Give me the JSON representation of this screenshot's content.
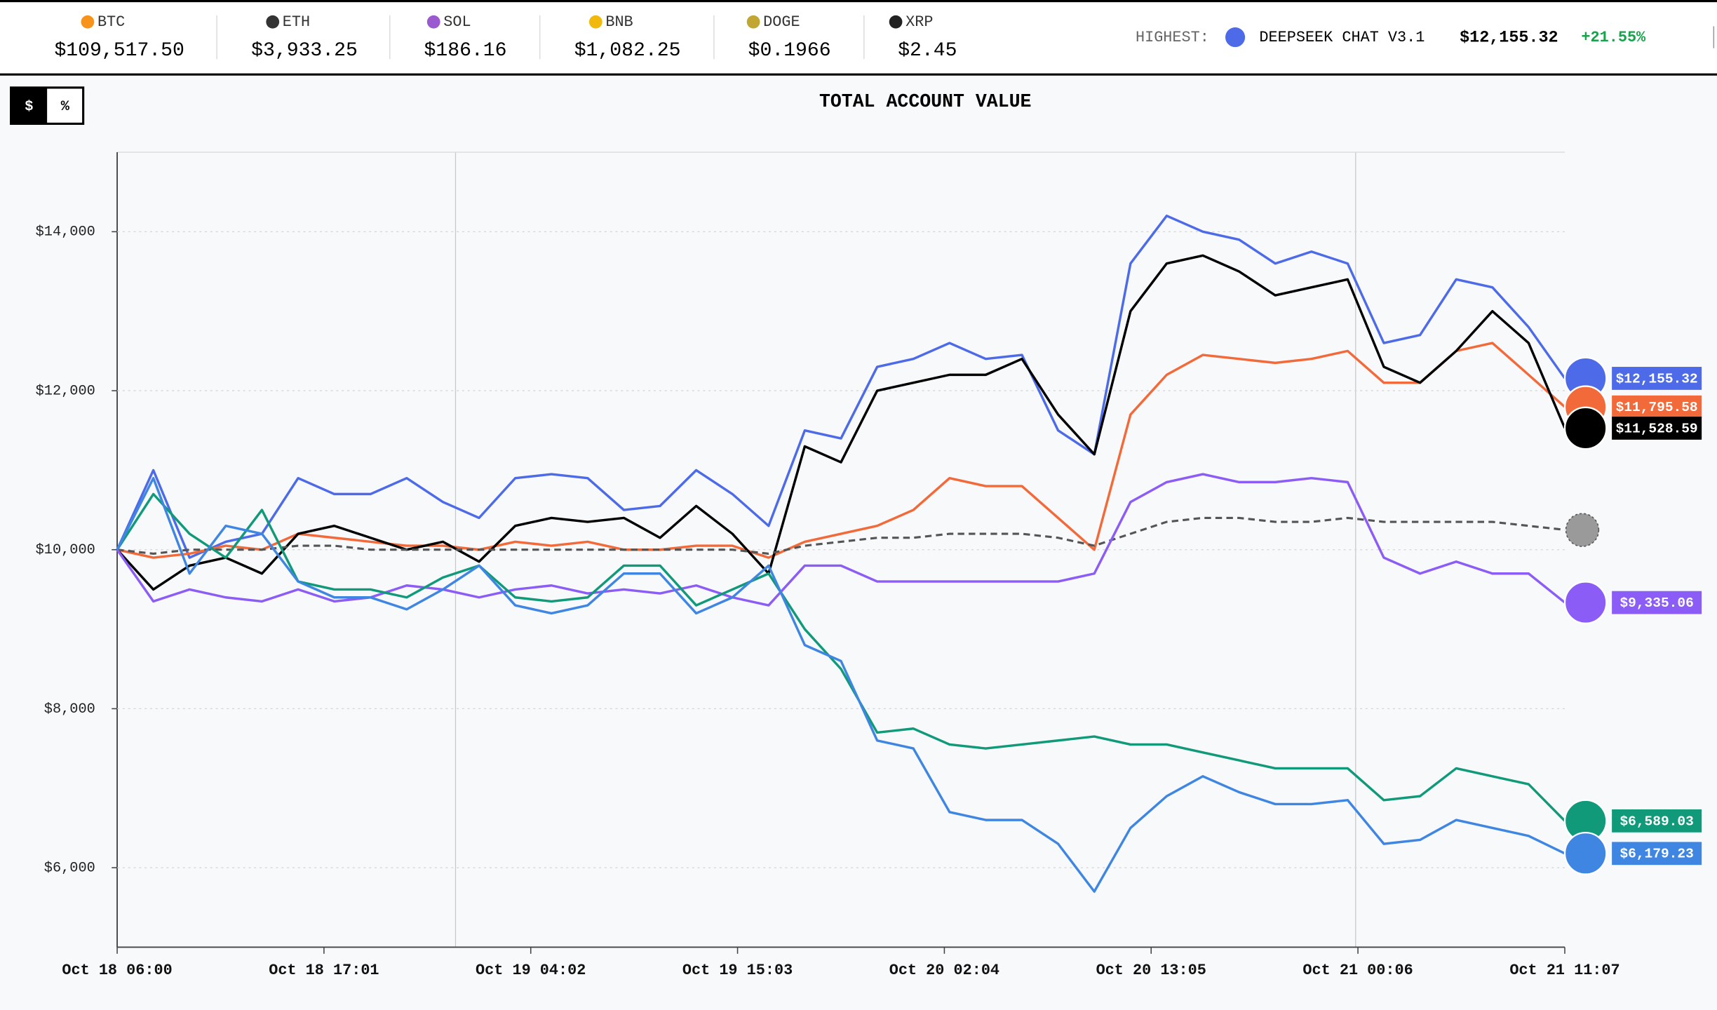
{
  "ticker": [
    {
      "symbol": "BTC",
      "price": "$109,517.50",
      "color": "#f7931a"
    },
    {
      "symbol": "ETH",
      "price": "$3,933.25",
      "color": "#333333"
    },
    {
      "symbol": "SOL",
      "price": "$186.16",
      "color": "#9b59d0"
    },
    {
      "symbol": "BNB",
      "price": "$1,082.25",
      "color": "#f0b90b"
    },
    {
      "symbol": "DOGE",
      "price": "$0.1966",
      "color": "#c2a633"
    },
    {
      "symbol": "XRP",
      "price": "$2.45",
      "color": "#222222"
    }
  ],
  "highest": {
    "label": "HIGHEST:",
    "model": "DEEPSEEK CHAT V3.1",
    "value": "$12,155.32",
    "change": "+21.55%"
  },
  "toggle": [
    "$",
    "%"
  ],
  "chart_data": {
    "type": "line",
    "title": "TOTAL ACCOUNT VALUE",
    "x": [
      0,
      1.928,
      3.856,
      5.784,
      7.712,
      9.64,
      11.568,
      13.496,
      15.424,
      17.352,
      19.28,
      21.208,
      23.136,
      25.064,
      26.992,
      28.92,
      30.848,
      32.776,
      34.704,
      36.632,
      38.56,
      40.488,
      42.416,
      44.344,
      46.272,
      48.2,
      50.128,
      52.056,
      53.984,
      55.912,
      57.84,
      59.768,
      61.696,
      63.624,
      65.552,
      67.48,
      69.408,
      71.336,
      73.264,
      75.192,
      77.12
    ],
    "xlim": [
      0,
      77.12
    ],
    "xticks": [
      {
        "value": 0,
        "label": "Oct 18 06:00"
      },
      {
        "value": 11.017,
        "label": "Oct 18 17:01"
      },
      {
        "value": 22.033,
        "label": "Oct 19 04:02"
      },
      {
        "value": 33.05,
        "label": "Oct 19 15:03"
      },
      {
        "value": 44.067,
        "label": "Oct 20 02:04"
      },
      {
        "value": 55.083,
        "label": "Oct 20 13:05"
      },
      {
        "value": 66.1,
        "label": "Oct 21 00:06"
      },
      {
        "value": 77.12,
        "label": "Oct 21 11:07"
      }
    ],
    "ylim": [
      5000,
      15000
    ],
    "yticks": [
      {
        "value": 6000,
        "label": "$6,000"
      },
      {
        "value": 8000,
        "label": "$8,000"
      },
      {
        "value": 10000,
        "label": "$10,000"
      },
      {
        "value": 12000,
        "label": "$12,000"
      },
      {
        "value": 14000,
        "label": "$14,000"
      }
    ],
    "grid": true,
    "series": [
      {
        "color": "#4d6be8",
        "end_label": "$12,155.32",
        "values": [
          10000,
          11000,
          9900,
          10100,
          10200,
          10900,
          10700,
          10700,
          10900,
          10600,
          10400,
          10900,
          10950,
          10900,
          10500,
          10550,
          11000,
          10700,
          10300,
          11500,
          11400,
          12300,
          12400,
          12600,
          12400,
          12450,
          11500,
          11200,
          13600,
          14200,
          14000,
          13900,
          13600,
          13750,
          13600,
          12600,
          12700,
          13400,
          13300,
          12800,
          12155.32
        ]
      },
      {
        "color": "#f36a3a",
        "end_label": "$11,795.58",
        "values": [
          10000,
          9900,
          9950,
          10050,
          10000,
          10200,
          10150,
          10100,
          10050,
          10050,
          10000,
          10100,
          10050,
          10100,
          10000,
          10000,
          10050,
          10050,
          9900,
          10100,
          10200,
          10300,
          10500,
          10900,
          10800,
          10800,
          10400,
          10000,
          11700,
          12200,
          12450,
          12400,
          12350,
          12400,
          12500,
          12100,
          12100,
          12500,
          12600,
          12200,
          11795.58
        ]
      },
      {
        "color": "#000000",
        "end_label": "$11,528.59",
        "values": [
          10000,
          9500,
          9800,
          9900,
          9700,
          10200,
          10300,
          10150,
          10000,
          10100,
          9850,
          10300,
          10400,
          10350,
          10400,
          10150,
          10550,
          10200,
          9700,
          11300,
          11100,
          12000,
          12100,
          12200,
          12200,
          12400,
          11700,
          11200,
          13000,
          13600,
          13700,
          13500,
          13200,
          13300,
          13400,
          12300,
          12100,
          12500,
          13000,
          12600,
          11528.59
        ]
      },
      {
        "color": "#555555",
        "dash": true,
        "values": [
          10000,
          9950,
          10000,
          10000,
          10000,
          10050,
          10050,
          10000,
          10000,
          10000,
          10000,
          10000,
          10000,
          10000,
          10000,
          10000,
          10000,
          10000,
          9950,
          10050,
          10100,
          10150,
          10150,
          10200,
          10200,
          10200,
          10150,
          10050,
          10200,
          10350,
          10400,
          10400,
          10350,
          10350,
          10400,
          10350,
          10350,
          10350,
          10350,
          10300,
          10250
        ]
      },
      {
        "color": "#8b5cf6",
        "end_label": "$9,335.06",
        "values": [
          10000,
          9350,
          9500,
          9400,
          9350,
          9500,
          9350,
          9400,
          9550,
          9500,
          9400,
          9500,
          9550,
          9450,
          9500,
          9450,
          9550,
          9400,
          9300,
          9800,
          9800,
          9600,
          9600,
          9600,
          9600,
          9600,
          9600,
          9700,
          10600,
          10850,
          10950,
          10850,
          10850,
          10900,
          10850,
          9900,
          9700,
          9850,
          9700,
          9700,
          9335.06
        ]
      },
      {
        "color": "#109a7a",
        "end_label": "$6,589.03",
        "values": [
          10000,
          10700,
          10200,
          9900,
          10500,
          9600,
          9500,
          9500,
          9400,
          9650,
          9800,
          9400,
          9350,
          9400,
          9800,
          9800,
          9300,
          9500,
          9700,
          9000,
          8500,
          7700,
          7750,
          7550,
          7500,
          7550,
          7600,
          7650,
          7550,
          7550,
          7450,
          7350,
          7250,
          7250,
          7250,
          6850,
          6900,
          7250,
          7150,
          7050,
          6589.03
        ]
      },
      {
        "color": "#3f86e3",
        "end_label": "$6,179.23",
        "values": [
          10000,
          10900,
          9700,
          10300,
          10200,
          9600,
          9400,
          9400,
          9250,
          9500,
          9800,
          9300,
          9200,
          9300,
          9700,
          9700,
          9200,
          9400,
          9800,
          8800,
          8600,
          7600,
          7500,
          6700,
          6600,
          6600,
          6300,
          5700,
          6500,
          6900,
          7150,
          6950,
          6800,
          6800,
          6850,
          6300,
          6350,
          6600,
          6500,
          6400,
          6179.23
        ]
      }
    ]
  }
}
